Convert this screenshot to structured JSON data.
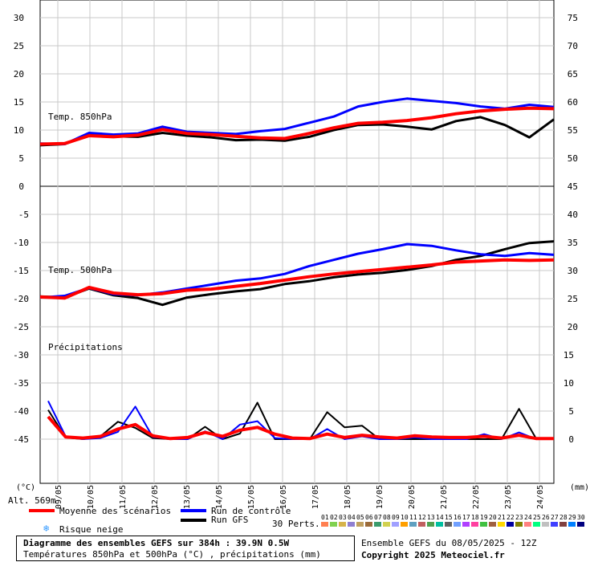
{
  "chart_data": {
    "type": "line",
    "x_labels": [
      "09/05",
      "10/05",
      "11/05",
      "12/05",
      "13/05",
      "14/05",
      "15/05",
      "16/05",
      "17/05",
      "18/05",
      "19/05",
      "20/05",
      "21/05",
      "22/05",
      "23/05",
      "24/05"
    ],
    "panels": [
      {
        "label": "Temp. 850hPa",
        "left_axis": {
          "ticks": [
            0,
            5,
            10,
            15,
            20,
            25,
            30
          ]
        },
        "right_axis": {
          "ticks": [
            45,
            50,
            55,
            60,
            65,
            70,
            75
          ]
        },
        "series": [
          {
            "name": "Moyenne des scénarios",
            "color": "#ff0000",
            "values": [
              7.5,
              7.6,
              9.0,
              8.8,
              9.1,
              10.1,
              9.4,
              9.2,
              8.9,
              8.6,
              8.5,
              9.4,
              10.4,
              11.2,
              11.4,
              11.7,
              12.2,
              12.9,
              13.4,
              13.7,
              13.9,
              13.8
            ]
          },
          {
            "name": "Run de contrôle",
            "color": "#0000ff",
            "values": [
              7.6,
              7.5,
              9.5,
              9.2,
              9.4,
              10.6,
              9.7,
              9.5,
              9.3,
              9.8,
              10.2,
              11.3,
              12.4,
              14.2,
              15.0,
              15.6,
              15.2,
              14.8,
              14.2,
              13.8,
              14.5,
              14.1
            ]
          },
          {
            "name": "Run GFS",
            "color": "#000000",
            "values": [
              7.3,
              7.5,
              9.1,
              8.9,
              8.8,
              9.5,
              9.0,
              8.7,
              8.2,
              8.3,
              8.1,
              8.8,
              10.0,
              10.9,
              11.0,
              10.6,
              10.1,
              11.6,
              12.3,
              10.9,
              8.7,
              11.9
            ]
          }
        ]
      },
      {
        "label": "Temp. 500hPa",
        "left_axis": {
          "ticks": [
            -45,
            -40,
            -35,
            -30,
            -25,
            -20,
            -15,
            -10,
            -5
          ]
        },
        "right_axis": {
          "ticks": [
            20,
            25,
            30,
            35,
            40
          ]
        },
        "series": [
          {
            "name": "Moyenne des scénarios",
            "color": "#ff0000",
            "values": [
              -19.7,
              -19.9,
              -18.0,
              -19.0,
              -19.3,
              -19.1,
              -18.5,
              -18.3,
              -17.8,
              -17.3,
              -16.7,
              -16.1,
              -15.6,
              -15.2,
              -14.8,
              -14.4,
              -14.0,
              -13.5,
              -13.3,
              -13.1,
              -13.2,
              -13.1
            ]
          },
          {
            "name": "Run de contrôle",
            "color": "#0000ff",
            "values": [
              -19.8,
              -19.5,
              -18.1,
              -19.2,
              -19.4,
              -18.9,
              -18.2,
              -17.5,
              -16.8,
              -16.4,
              -15.6,
              -14.2,
              -13.1,
              -12.0,
              -11.2,
              -10.3,
              -10.6,
              -11.4,
              -12.1,
              -12.4,
              -11.9,
              -12.2
            ]
          },
          {
            "name": "Run GFS",
            "color": "#000000",
            "values": [
              -19.6,
              -19.8,
              -18.2,
              -19.4,
              -19.9,
              -21.1,
              -19.8,
              -19.2,
              -18.7,
              -18.3,
              -17.4,
              -16.9,
              -16.2,
              -15.7,
              -15.4,
              -14.9,
              -14.2,
              -13.1,
              -12.4,
              -11.2,
              -10.1,
              -9.8
            ]
          }
        ]
      },
      {
        "label": "Précipitations",
        "right_axis": {
          "ticks": [
            0,
            5,
            10,
            15
          ]
        },
        "series": [
          {
            "name": "Moyenne des scénarios",
            "color": "#ff0000",
            "values": [
              4.0,
              0.4,
              0.2,
              0.5,
              1.8,
              2.6,
              0.6,
              0.1,
              0.3,
              1.2,
              0.5,
              1.6,
              2.1,
              0.9,
              0.2,
              0.1,
              0.9,
              0.3,
              0.7,
              0.4,
              0.2,
              0.6,
              0.4,
              0.3,
              0.3,
              0.5,
              0.2,
              0.7,
              0.1,
              0.1
            ]
          },
          {
            "name": "Run de contrôle",
            "color": "#0000ff",
            "values": [
              6.8,
              0.5,
              0.0,
              0.2,
              1.3,
              5.8,
              0.4,
              0.0,
              0.0,
              1.4,
              0.0,
              2.6,
              3.2,
              0.2,
              0.0,
              0.0,
              1.8,
              0.0,
              0.5,
              0.0,
              0.0,
              0.3,
              0.0,
              0.0,
              0.0,
              0.9,
              0.0,
              1.2,
              0.0,
              0.0
            ]
          },
          {
            "name": "Run GFS",
            "color": "#000000",
            "values": [
              5.2,
              0.3,
              0.0,
              0.5,
              3.1,
              2.0,
              0.2,
              0.0,
              0.0,
              2.2,
              0.0,
              1.0,
              6.5,
              0.0,
              0.0,
              0.0,
              4.8,
              2.1,
              2.4,
              0.0,
              0.0,
              0.0,
              0.0,
              0.0,
              0.0,
              0.0,
              0.0,
              5.4,
              0.0,
              0.0
            ]
          }
        ]
      }
    ],
    "left_unit": "(°C)",
    "right_unit": "(mm)",
    "altitude_label": "Alt. 569m",
    "grid": true
  },
  "legend": {
    "mean": "Moyenne des scénarios",
    "control": "Run de contrôle",
    "gfs": "Run GFS",
    "snow": "Risque neige",
    "perts": "30 Perts.",
    "pert_numbers": [
      "01",
      "02",
      "03",
      "04",
      "05",
      "06",
      "07",
      "08",
      "09",
      "10",
      "11",
      "12",
      "13",
      "14",
      "15",
      "16",
      "17",
      "18",
      "19",
      "20",
      "21",
      "22",
      "23",
      "24",
      "25",
      "26",
      "27",
      "28",
      "29",
      "30"
    ],
    "pert_colors": [
      "#ff7f50",
      "#7fd14f",
      "#d6b34b",
      "#8f7fd1",
      "#c0a060",
      "#9b6b3a",
      "#3a9b6b",
      "#d1d14f",
      "#a0a0ff",
      "#ff9f00",
      "#5fa0c0",
      "#c05f5f",
      "#4fa04f",
      "#00c0a0",
      "#606060",
      "#70a0ff",
      "#b040ff",
      "#ff40a0",
      "#40c040",
      "#a06040",
      "#ffd700",
      "#0000a0",
      "#808000",
      "#ff8080",
      "#00ff80",
      "#c0c0c0",
      "#4040ff",
      "#804040",
      "#0080ff",
      "#000080"
    ]
  },
  "footer": {
    "title": "Diagramme des ensembles GEFS sur 384h : 39.9N 0.5W",
    "subtitle": "Températures 850hPa et 500hPa (°C) , précipitations (mm)",
    "ensemble": "Ensemble GEFS du 08/05/2025 - 12Z",
    "copyright": "Copyright 2025 Meteociel.fr"
  }
}
